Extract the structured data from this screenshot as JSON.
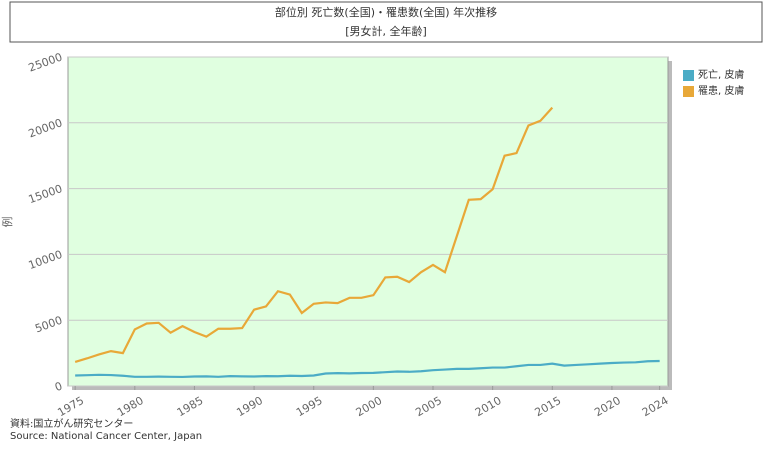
{
  "chart_data": {
    "type": "line",
    "title": "部位別 死亡数(全国)・罹患数(全国) 年次推移",
    "subtitle": "[男女計, 全年齢]",
    "y_label": "例",
    "source": [
      "資料:国立がん研究センター",
      "Source: National Cancer Center, Japan"
    ],
    "x": [
      1975,
      1976,
      1977,
      1978,
      1979,
      1980,
      1981,
      1982,
      1983,
      1984,
      1985,
      1986,
      1987,
      1988,
      1989,
      1990,
      1991,
      1992,
      1993,
      1994,
      1995,
      1996,
      1997,
      1998,
      1999,
      2000,
      2001,
      2002,
      2003,
      2004,
      2005,
      2006,
      2007,
      2008,
      2009,
      2010,
      2011,
      2012,
      2013,
      2014,
      2015,
      2016,
      2017,
      2018,
      2019,
      2020,
      2021,
      2022,
      2023,
      2024
    ],
    "series": [
      {
        "name": "死亡, 皮膚",
        "color": "#4bacc6",
        "values": [
          800,
          820,
          850,
          830,
          780,
          700,
          700,
          710,
          700,
          690,
          720,
          730,
          700,
          750,
          730,
          720,
          750,
          740,
          780,
          760,
          800,
          950,
          980,
          960,
          990,
          1000,
          1050,
          1100,
          1080,
          1120,
          1200,
          1250,
          1300,
          1300,
          1350,
          1400,
          1400,
          1500,
          1600,
          1600,
          1700,
          1550,
          1600,
          1650,
          1700,
          1750,
          1780,
          1800,
          1880,
          1900
        ]
      },
      {
        "name": "罹患, 皮膚",
        "color": "#e8a838",
        "values": [
          1830,
          2100,
          2400,
          2650,
          2500,
          4300,
          4750,
          4800,
          4050,
          4550,
          4100,
          3750,
          4350,
          4350,
          4400,
          5800,
          6050,
          7200,
          6950,
          5550,
          6250,
          6350,
          6300,
          6700,
          6700,
          6900,
          8250,
          8300,
          7900,
          8650,
          9200,
          8650,
          11400,
          14150,
          14200,
          14950,
          17500,
          17700,
          19800,
          20150,
          21150,
          null,
          null,
          null,
          null,
          null,
          null,
          null,
          null,
          null
        ]
      }
    ],
    "xlim": [
      1974.4,
      2024.7
    ],
    "xticks": [
      1975,
      1980,
      1985,
      1990,
      1995,
      2000,
      2005,
      2010,
      2015,
      2020,
      2024
    ],
    "ylim": [
      0,
      25000
    ],
    "yticks": [
      0,
      5000,
      10000,
      15000,
      20000,
      25000
    ],
    "grid": true,
    "legend": "right",
    "background": "#e0ffe0"
  }
}
